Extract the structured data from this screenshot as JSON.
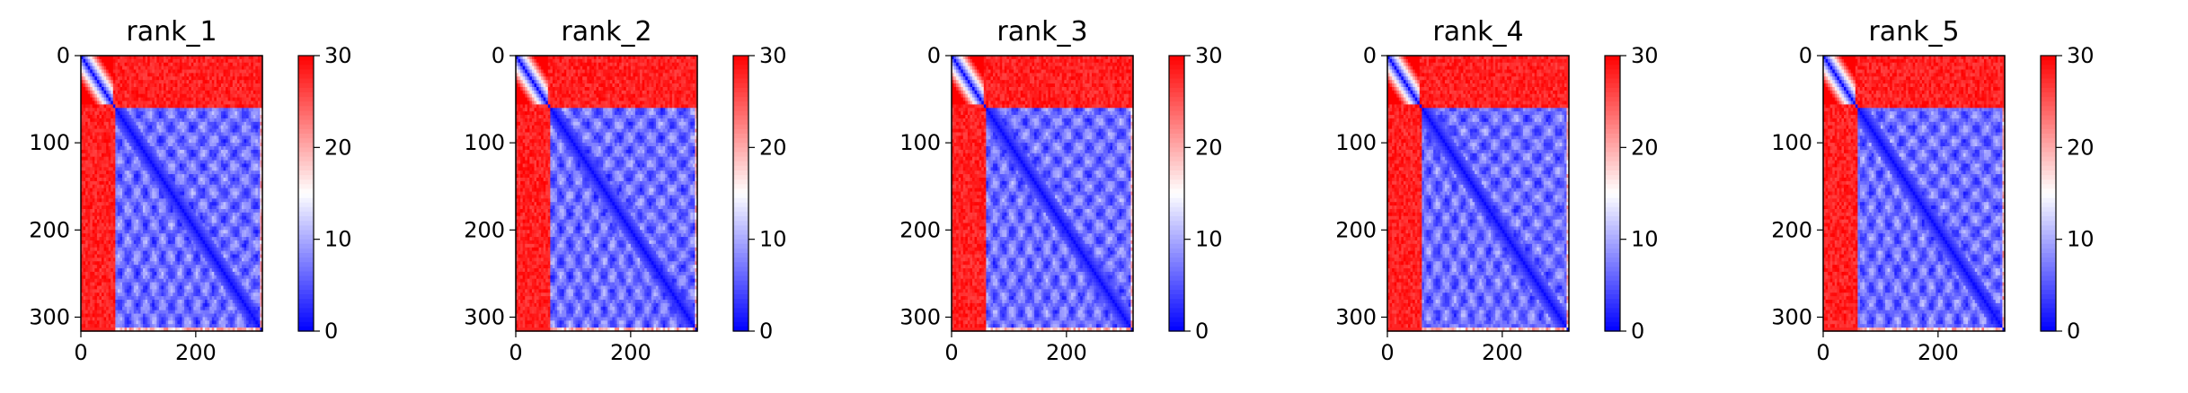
{
  "chart_data": [
    {
      "type": "heatmap",
      "title": "rank_1",
      "xticks": [
        0,
        200
      ],
      "yticks": [
        0,
        100,
        200,
        300
      ],
      "xlim": [
        0,
        316
      ],
      "ylim": [
        316,
        0
      ],
      "colorbar": {
        "ticks": [
          0,
          10,
          20,
          30
        ],
        "range": [
          0,
          30
        ],
        "colormap": "bwr"
      },
      "colors": {
        "low": "#0000ff",
        "mid": "#ffffff",
        "high": "#ff0000"
      },
      "regions": {
        "terminal_end": 58,
        "structured_start": 60,
        "structured_end": 310,
        "grid_end": 316
      }
    },
    {
      "type": "heatmap",
      "title": "rank_2",
      "xticks": [
        0,
        200
      ],
      "yticks": [
        0,
        100,
        200,
        300
      ],
      "xlim": [
        0,
        316
      ],
      "ylim": [
        316,
        0
      ],
      "colorbar": {
        "ticks": [
          0,
          10,
          20,
          30
        ],
        "range": [
          0,
          30
        ],
        "colormap": "bwr"
      },
      "colors": {
        "low": "#0000ff",
        "mid": "#ffffff",
        "high": "#ff0000"
      },
      "regions": {
        "terminal_end": 58,
        "structured_start": 60,
        "structured_end": 310,
        "grid_end": 316
      }
    },
    {
      "type": "heatmap",
      "title": "rank_3",
      "xticks": [
        0,
        200
      ],
      "yticks": [
        0,
        100,
        200,
        300
      ],
      "xlim": [
        0,
        316
      ],
      "ylim": [
        316,
        0
      ],
      "colorbar": {
        "ticks": [
          0,
          10,
          20,
          30
        ],
        "range": [
          0,
          30
        ],
        "colormap": "bwr"
      },
      "colors": {
        "low": "#0000ff",
        "mid": "#ffffff",
        "high": "#ff0000"
      },
      "regions": {
        "terminal_end": 58,
        "structured_start": 60,
        "structured_end": 310,
        "grid_end": 316
      }
    },
    {
      "type": "heatmap",
      "title": "rank_4",
      "xticks": [
        0,
        200
      ],
      "yticks": [
        0,
        100,
        200,
        300
      ],
      "xlim": [
        0,
        316
      ],
      "ylim": [
        316,
        0
      ],
      "colorbar": {
        "ticks": [
          0,
          10,
          20,
          30
        ],
        "range": [
          0,
          30
        ],
        "colormap": "bwr"
      },
      "colors": {
        "low": "#0000ff",
        "mid": "#ffffff",
        "high": "#ff0000"
      },
      "regions": {
        "terminal_end": 58,
        "structured_start": 60,
        "structured_end": 310,
        "grid_end": 316
      }
    },
    {
      "type": "heatmap",
      "title": "rank_5",
      "xticks": [
        0,
        200
      ],
      "yticks": [
        0,
        100,
        200,
        300
      ],
      "xlim": [
        0,
        316
      ],
      "ylim": [
        316,
        0
      ],
      "colorbar": {
        "ticks": [
          0,
          10,
          20,
          30
        ],
        "range": [
          0,
          30
        ],
        "colormap": "bwr"
      },
      "colors": {
        "low": "#0000ff",
        "mid": "#ffffff",
        "high": "#ff0000"
      },
      "regions": {
        "terminal_end": 58,
        "structured_start": 60,
        "structured_end": 310,
        "grid_end": 316
      }
    }
  ]
}
